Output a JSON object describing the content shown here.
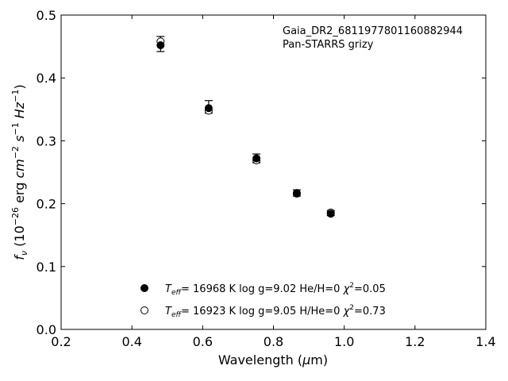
{
  "chart_data": {
    "type": "scatter",
    "xlim": [
      0.2,
      1.4
    ],
    "ylim": [
      0.0,
      0.5
    ],
    "x_ticks": [
      "0.2",
      "0.4",
      "0.6",
      "0.8",
      "1.0",
      "1.2",
      "1.4"
    ],
    "y_ticks": [
      "0.0",
      "0.1",
      "0.2",
      "0.3",
      "0.4",
      "0.5"
    ],
    "annotation": [
      "Gaia_DR2_6811977801160882944",
      "Pan-STARRS grizy"
    ],
    "observed": {
      "x": [
        0.481,
        0.617,
        0.752,
        0.866,
        0.962
      ],
      "y": [
        0.454,
        0.354,
        0.272,
        0.217,
        0.185
      ],
      "yerr": [
        0.012,
        0.01,
        0.007,
        0.005,
        0.004
      ]
    },
    "series": [
      {
        "name": "T_eff= 16968 K  log g=9.02  He/H=0  χ²=0.05",
        "marker": "filled",
        "x": [
          0.481,
          0.617,
          0.752,
          0.866,
          0.962
        ],
        "y": [
          0.452,
          0.352,
          0.272,
          0.216,
          0.184
        ]
      },
      {
        "name": "T_eff= 16923 K  log g=9.05  H/He=0  χ²=0.73",
        "marker": "open",
        "x": [
          0.481,
          0.617,
          0.752,
          0.866,
          0.962
        ],
        "y": [
          0.458,
          0.348,
          0.269,
          0.217,
          0.186
        ]
      }
    ]
  }
}
